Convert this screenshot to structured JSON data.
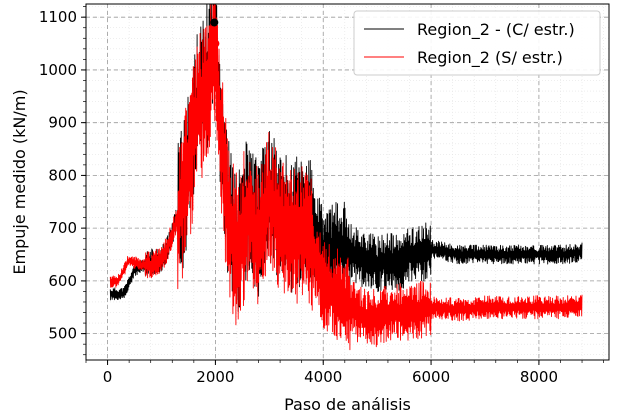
{
  "chart_data": {
    "type": "line",
    "xlabel": "Paso de análisis",
    "ylabel": "Empuje medido (kN/m)",
    "xlim": [
      -400,
      9300
    ],
    "ylim": [
      450,
      1125
    ],
    "xticks": [
      0,
      2000,
      4000,
      6000,
      8000
    ],
    "xtick_labels": [
      "0",
      "2000",
      "4000",
      "6000",
      "8000"
    ],
    "yticks": [
      500,
      600,
      700,
      800,
      900,
      1000,
      1100
    ],
    "ytick_labels": [
      "500",
      "600",
      "700",
      "800",
      "900",
      "1000",
      "1100"
    ],
    "grid": "major dashed + minor dotted",
    "legend_position": "top-right",
    "series": [
      {
        "name": "Region_2 - (C/ estr.)",
        "color": "#000000",
        "x": [
          50,
          300,
          500,
          700,
          900,
          1000,
          1100,
          1200,
          1300,
          1400,
          1500,
          1600,
          1700,
          1800,
          1900,
          2000,
          2050,
          2100,
          2200,
          2300,
          2400,
          2600,
          2800,
          3000,
          3200,
          3400,
          3600,
          3800,
          4000,
          4200,
          4400,
          4600,
          4800,
          5000,
          5200,
          5400,
          5600,
          5800,
          6000,
          6500,
          7000,
          7500,
          8000,
          8500,
          8800
        ],
        "y": [
          575,
          575,
          620,
          630,
          640,
          640,
          660,
          690,
          720,
          760,
          820,
          900,
          950,
          960,
          1020,
          1090,
          980,
          900,
          760,
          700,
          660,
          740,
          700,
          760,
          720,
          700,
          720,
          700,
          650,
          660,
          660,
          650,
          640,
          630,
          640,
          630,
          650,
          650,
          660,
          650,
          650,
          650,
          650,
          650,
          655
        ],
        "peak": {
          "x": 1980,
          "y": 1090
        }
      },
      {
        "name": "Region_2 (S/ estr.)",
        "color": "#ff0000",
        "x": [
          50,
          200,
          400,
          600,
          800,
          1000,
          1100,
          1200,
          1300,
          1400,
          1500,
          1600,
          1700,
          1800,
          1900,
          2000,
          2050,
          2100,
          2200,
          2300,
          2400,
          2600,
          2800,
          3000,
          3200,
          3400,
          3600,
          3800,
          4000,
          4200,
          4400,
          4600,
          4800,
          5000,
          5200,
          5400,
          5600,
          5800,
          6000,
          6500,
          7000,
          7500,
          8000,
          8500,
          8800
        ],
        "y": [
          600,
          600,
          640,
          630,
          630,
          640,
          660,
          690,
          720,
          760,
          810,
          880,
          940,
          950,
          1000,
          1050,
          960,
          880,
          760,
          700,
          650,
          730,
          680,
          760,
          700,
          680,
          690,
          660,
          590,
          580,
          560,
          540,
          530,
          530,
          540,
          540,
          540,
          545,
          550,
          545,
          550,
          550,
          550,
          550,
          555
        ],
        "peak": {
          "x": 2000,
          "y": 1050
        }
      }
    ]
  }
}
